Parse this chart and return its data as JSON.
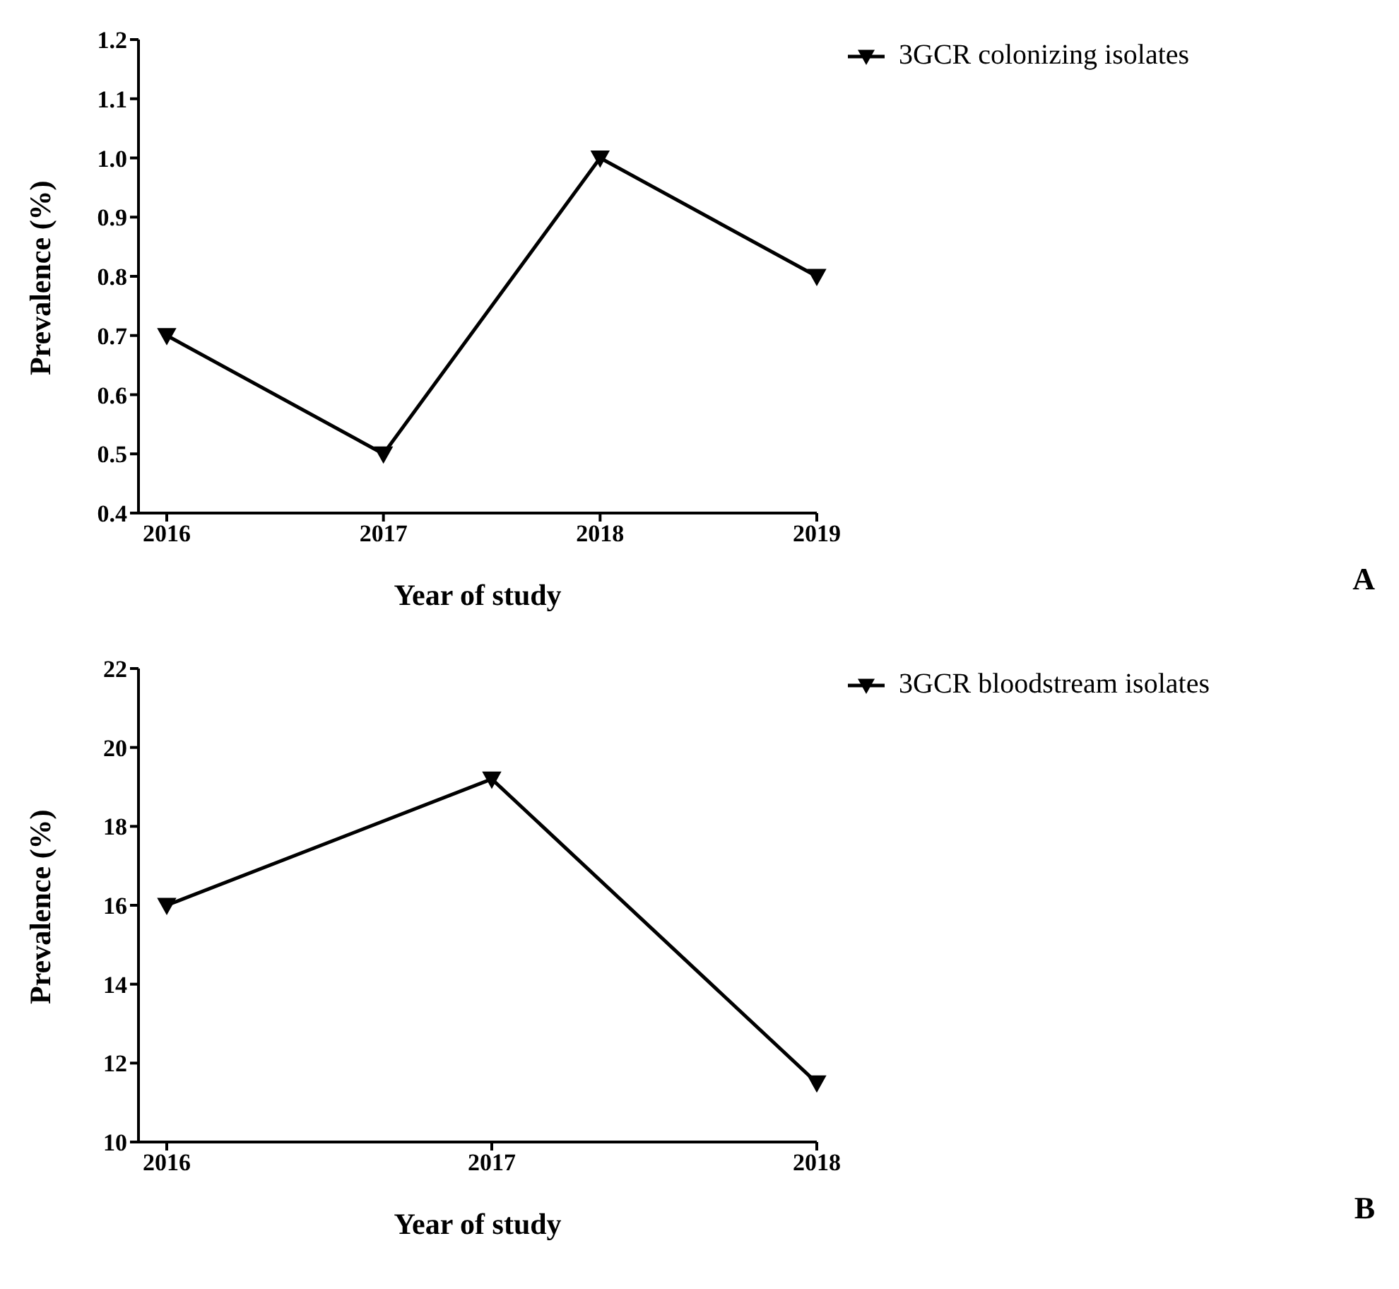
{
  "chart_data": [
    {
      "type": "line",
      "xlabel": "Year of study",
      "ylabel": "Prevalence (%)",
      "categories": [
        "2016",
        "2017",
        "2018",
        "2019"
      ],
      "series": [
        {
          "name": "3GCR colonizing isolates",
          "color": "#000000",
          "values": [
            0.7,
            0.5,
            1.0,
            0.8
          ]
        }
      ],
      "ylim": [
        0.4,
        1.2
      ],
      "yticks": [
        0.4,
        0.5,
        0.6,
        0.7,
        0.8,
        0.9,
        {
          "value": 1.0,
          "label": "1.0"
        },
        1.1,
        1.2
      ],
      "marker": "triangle",
      "legend": "top right",
      "grid": false,
      "annotations": [
        "A"
      ]
    },
    {
      "type": "line",
      "xlabel": "Year of study",
      "ylabel": "Prevalence (%)",
      "categories": [
        "2016",
        "2017",
        "2018"
      ],
      "series": [
        {
          "name": "3GCR bloodstream isolates",
          "color": "#000000",
          "values": [
            16.0,
            19.2,
            11.5
          ]
        }
      ],
      "ylim": [
        10,
        22
      ],
      "yticks": [
        10,
        12,
        14,
        16,
        18,
        20,
        22
      ],
      "marker": "triangle",
      "legend": "top right",
      "grid": false,
      "annotations": [
        "B"
      ]
    }
  ]
}
